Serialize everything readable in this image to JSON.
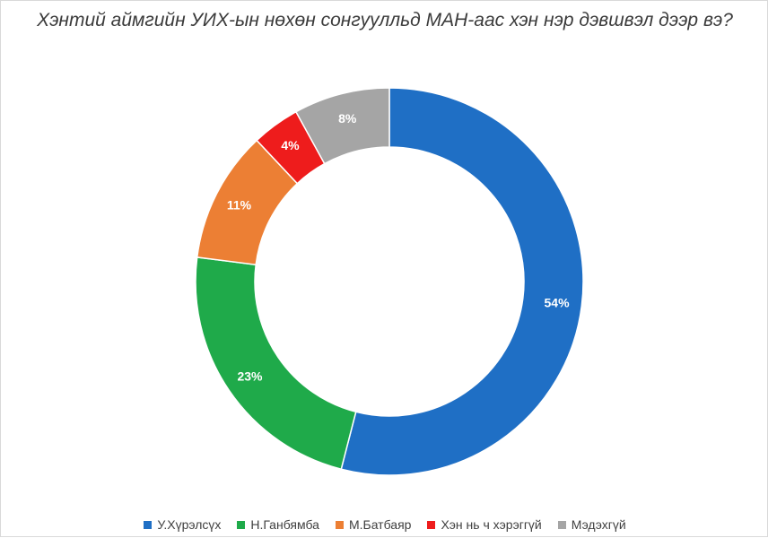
{
  "chart_data": {
    "type": "pie",
    "variant": "donut",
    "title": "Хэнтий аймгийн УИХ-ын нөхөн сонгуулльд МАН-аас хэн нэр дэвшвэл дээр вэ?",
    "slices": [
      {
        "label": "У.Хүрэлсүх",
        "value": 54,
        "display": "54%",
        "color": "#1f6fc5"
      },
      {
        "label": "Н.Ганбямба",
        "value": 23,
        "display": "23%",
        "color": "#1faa4a"
      },
      {
        "label": "М.Батбаяр",
        "value": 11,
        "display": "11%",
        "color": "#ec7f34"
      },
      {
        "label": "Хэн нь ч хэрэггүй",
        "value": 4,
        "display": "4%",
        "color": "#ee1c1c"
      },
      {
        "label": "Мэдэхгүй",
        "value": 8,
        "display": "8%",
        "color": "#a5a5a5"
      }
    ],
    "legend_position": "bottom",
    "start_angle": "top, clockwise"
  }
}
